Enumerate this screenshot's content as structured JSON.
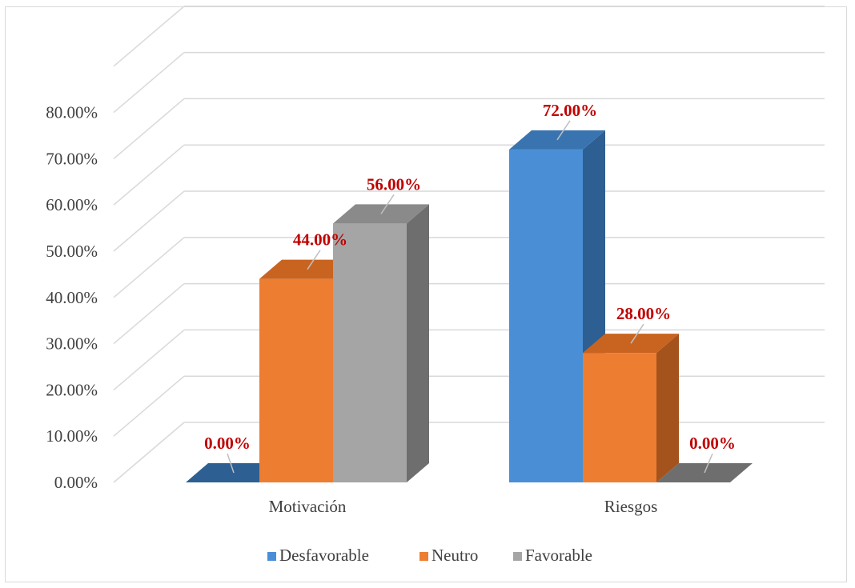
{
  "chart_data": {
    "type": "bar",
    "style": "3d-clustered-column",
    "categories": [
      "Motivación",
      "Riesgos"
    ],
    "series": [
      {
        "name": "Desfavorable",
        "values": [
          0,
          72
        ],
        "labels": [
          "0.00%",
          "72.00%"
        ],
        "color": "#4a8fd6",
        "side_color": "#2e5f92",
        "top_color": "#3a74b0"
      },
      {
        "name": "Neutro",
        "values": [
          44,
          28
        ],
        "labels": [
          "44.00%",
          "28.00%"
        ],
        "color": "#ed7d31",
        "side_color": "#a4531c",
        "top_color": "#c96420"
      },
      {
        "name": "Favorable",
        "values": [
          56,
          0
        ],
        "labels": [
          "56.00%",
          "0.00%"
        ],
        "color": "#a5a5a5",
        "side_color": "#6e6e6e",
        "top_color": "#8a8a8a"
      }
    ],
    "y_ticks": [
      "0.00%",
      "10.00%",
      "20.00%",
      "30.00%",
      "40.00%",
      "50.00%",
      "60.00%",
      "70.00%",
      "80.00%"
    ],
    "ylim": [
      0,
      80
    ],
    "grid": true,
    "legend_position": "bottom",
    "data_label_color": "#c00000",
    "gridline_color": "#d9d9d9",
    "axis_text_color": "#404040"
  }
}
